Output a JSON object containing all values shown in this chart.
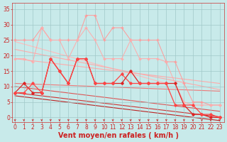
{
  "background_color": "#c8eaea",
  "grid_color": "#a0c8c8",
  "x_label": "Vent moyen/en rafales ( km/h )",
  "x_ticks": [
    0,
    1,
    2,
    3,
    4,
    5,
    6,
    7,
    8,
    9,
    10,
    11,
    12,
    13,
    14,
    15,
    16,
    17,
    18,
    19,
    20,
    21,
    22,
    23
  ],
  "y_ticks": [
    0,
    5,
    10,
    15,
    20,
    25,
    30,
    35
  ],
  "ylim": [
    -1.5,
    37
  ],
  "xlim": [
    -0.3,
    23.5
  ],
  "tick_fontsize": 5.5,
  "axis_label_fontsize": 7,
  "series_rafales_max": {
    "y": [
      25,
      25,
      25,
      29,
      25,
      25,
      25,
      25,
      33,
      33,
      25,
      29,
      29,
      25,
      25,
      25,
      25,
      18,
      18,
      11,
      5,
      5,
      4,
      4
    ],
    "color": "#ff9999",
    "lw": 0.7,
    "marker": "+",
    "ms": 2.5
  },
  "series_rafales_mean": {
    "y": [
      19,
      19,
      18,
      29,
      25,
      25,
      19,
      25,
      29,
      25,
      19,
      19,
      19,
      25,
      19,
      19,
      19,
      18,
      11,
      5,
      4,
      4,
      4,
      4
    ],
    "color": "#ffaaaa",
    "lw": 0.7,
    "marker": "+",
    "ms": 2.5
  },
  "series_vent_moyen1": {
    "y": [
      8,
      11,
      8,
      8,
      19,
      15,
      11,
      19,
      19,
      11,
      11,
      11,
      11,
      15,
      11,
      11,
      11,
      11,
      11,
      4,
      1,
      1,
      0,
      0
    ],
    "color": "#dd2222",
    "lw": 0.9,
    "marker": "D",
    "ms": 1.8
  },
  "series_vent_moyen2": {
    "y": [
      8,
      8,
      11,
      8,
      19,
      15,
      11,
      19,
      19,
      11,
      11,
      11,
      14,
      11,
      11,
      11,
      11,
      11,
      4,
      4,
      4,
      1,
      1,
      0
    ],
    "color": "#ff4444",
    "lw": 0.9,
    "marker": "D",
    "ms": 1.8
  },
  "reg_lines": [
    {
      "x0": 0,
      "y0": 24,
      "x1": 17,
      "y1": 11,
      "color": "#ffbbbb",
      "lw": 0.8
    },
    {
      "x0": 0,
      "y0": 19,
      "x1": 23,
      "y1": 11,
      "color": "#ffaaaa",
      "lw": 0.8
    },
    {
      "x0": 0,
      "y0": 22,
      "x1": 23,
      "y1": 8,
      "color": "#ff9999",
      "lw": 0.8
    },
    {
      "x0": 0,
      "y0": 11,
      "x1": 23,
      "y1": 8,
      "color": "#ee6666",
      "lw": 0.8
    },
    {
      "x0": 0,
      "y0": 10,
      "x1": 23,
      "y1": 2,
      "color": "#dd4444",
      "lw": 0.8
    },
    {
      "x0": 0,
      "y0": 8,
      "x1": 23,
      "y1": 0,
      "color": "#cc3333",
      "lw": 0.8
    },
    {
      "x0": 0,
      "y0": 7,
      "x1": 23,
      "y1": -1,
      "color": "#bb2222",
      "lw": 0.8
    }
  ],
  "arrow_color": "#cc2222"
}
